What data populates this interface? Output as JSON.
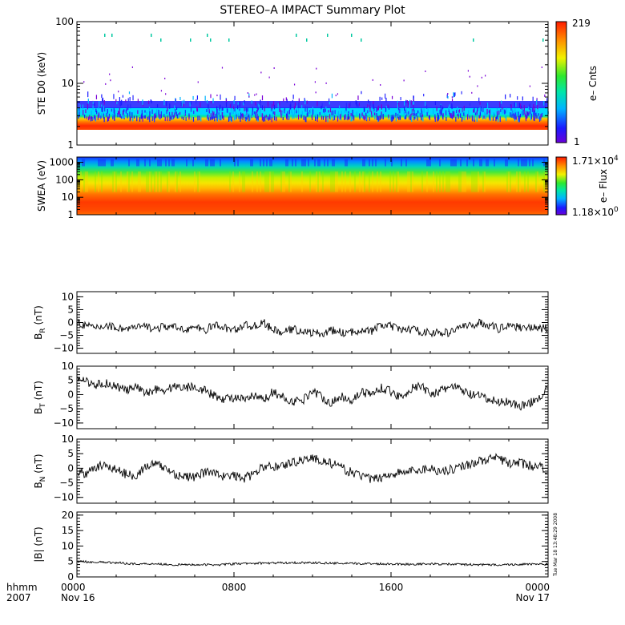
{
  "chart_data": {
    "type": "line",
    "title": "STEREO–A IMPACT Summary Plot",
    "x_axis": {
      "row_label_1": "hhmm",
      "row_label_2": "2007",
      "range_hours": [
        0,
        24
      ],
      "ticks": [
        {
          "hour": 0,
          "label": "0000",
          "date": "Nov 16"
        },
        {
          "hour": 8,
          "label": "0800",
          "date": ""
        },
        {
          "hour": 16,
          "label": "1600",
          "date": ""
        },
        {
          "hour": 24,
          "label": "0000",
          "date": "Nov 17"
        }
      ]
    },
    "timestamp": "Tue Mar 18 13:48:29 2008",
    "panels": [
      {
        "id": "ste",
        "kind": "spectrogram",
        "ylabel": "STE D0 (keV)",
        "yscale": "log",
        "ylim": [
          1,
          100
        ],
        "yticks": [
          {
            "v": 1,
            "label": "1"
          },
          {
            "v": 10,
            "label": "10"
          },
          {
            "v": 100,
            "label": "100"
          }
        ],
        "colorbar": {
          "label": "e– Cnts",
          "max": "219",
          "min": "1"
        },
        "description_bands_keV": {
          "saturated_top": 2.6,
          "cyan_edge": 3.3,
          "sparse_top": 5.5
        }
      },
      {
        "id": "swea",
        "kind": "spectrogram",
        "ylabel": "SWEA (eV)",
        "yscale": "log",
        "ylim": [
          1,
          2000
        ],
        "yticks": [
          {
            "v": 1,
            "label": "1"
          },
          {
            "v": 10,
            "label": "10"
          },
          {
            "v": 100,
            "label": "100"
          },
          {
            "v": 1000,
            "label": "1000"
          }
        ],
        "colorbar": {
          "label": "e– Flux",
          "max_mant": "1.71×10",
          "max_exp": "4",
          "min_mant": "1.18×10",
          "min_exp": "0"
        }
      },
      {
        "id": "br",
        "kind": "line",
        "ylabel_main": "B",
        "ylabel_sub": "R",
        "ylabel_unit": " (nT)",
        "ylim": [
          -12,
          12
        ],
        "yticks": [
          {
            "v": -10,
            "label": "−10"
          },
          {
            "v": -5,
            "label": "−5"
          },
          {
            "v": 0,
            "label": "0"
          },
          {
            "v": 5,
            "label": "5"
          },
          {
            "v": 10,
            "label": "10"
          }
        ],
        "series": [
          {
            "x": [
              0,
              0.5,
              1,
              1.5,
              2,
              2.5,
              3,
              3.5,
              4,
              4.5,
              5,
              5.5,
              6,
              6.5,
              7,
              7.5,
              8,
              8.5,
              9,
              9.5,
              10,
              10.5,
              11,
              11.5,
              12,
              12.5,
              13,
              13.5,
              14,
              14.5,
              15,
              15.5,
              16,
              16.5,
              17,
              17.5,
              18,
              18.5,
              19,
              19.5,
              20,
              20.5,
              21,
              21.5,
              22,
              22.5,
              23,
              23.5,
              24
            ],
            "values": [
              0.5,
              -1.5,
              -2,
              -1,
              -2,
              -2.5,
              -2,
              -1.5,
              -2.5,
              -1.5,
              -2,
              -2.5,
              -2,
              -3,
              -1,
              -2,
              -3,
              -1,
              -1.5,
              0,
              -3,
              -4,
              -2.5,
              -3.5,
              -4,
              -4.5,
              -3,
              -4,
              -4,
              -2.5,
              -3.5,
              -1,
              -1.5,
              -3,
              -2.5,
              -3.5,
              -4,
              -4,
              -4,
              -1.5,
              -1.5,
              0,
              -1,
              -2.5,
              -0.5,
              -2,
              -1.5,
              -2.5,
              -2
            ]
          }
        ]
      },
      {
        "id": "bt",
        "kind": "line",
        "ylabel_main": "B",
        "ylabel_sub": "T",
        "ylabel_unit": " (nT)",
        "ylim": [
          -12,
          10
        ],
        "yticks": [
          {
            "v": -10,
            "label": "−10"
          },
          {
            "v": -5,
            "label": "−5"
          },
          {
            "v": 0,
            "label": "0"
          },
          {
            "v": 5,
            "label": "5"
          },
          {
            "v": 10,
            "label": "10"
          }
        ],
        "series": [
          {
            "x": [
              0,
              0.5,
              1,
              1.5,
              2,
              2.5,
              3,
              3.5,
              4,
              4.5,
              5,
              5.5,
              6,
              6.5,
              7,
              7.5,
              8,
              8.5,
              9,
              9.5,
              10,
              10.5,
              11,
              11.5,
              12,
              12.5,
              13,
              13.5,
              14,
              14.5,
              15,
              15.5,
              16,
              16.5,
              17,
              17.5,
              18,
              18.5,
              19,
              19.5,
              20,
              20.5,
              21,
              21.5,
              22,
              22.5,
              23,
              23.5,
              24
            ],
            "values": [
              5,
              4.5,
              3.5,
              4,
              3,
              1.5,
              2.5,
              0.5,
              2,
              1.5,
              3,
              2.5,
              3,
              1.5,
              -0.5,
              -1.5,
              -1,
              -2,
              -0.5,
              -2,
              1,
              -1,
              -2.5,
              -2,
              1.5,
              -1,
              -3,
              -0.5,
              -2,
              1,
              0,
              2.5,
              1,
              -1,
              2,
              3,
              0.5,
              1,
              3,
              2,
              0,
              -0.5,
              -2,
              -2.5,
              -2.5,
              -4,
              -3.5,
              -1,
              2
            ]
          }
        ]
      },
      {
        "id": "bn",
        "kind": "line",
        "ylabel_main": "B",
        "ylabel_sub": "N",
        "ylabel_unit": " (nT)",
        "ylim": [
          -12,
          10
        ],
        "yticks": [
          {
            "v": -10,
            "label": "−10"
          },
          {
            "v": -5,
            "label": "−5"
          },
          {
            "v": 0,
            "label": "0"
          },
          {
            "v": 5,
            "label": "5"
          },
          {
            "v": 10,
            "label": "10"
          }
        ],
        "series": [
          {
            "x": [
              0,
              0.5,
              1,
              1.5,
              2,
              2.5,
              3,
              3.5,
              4,
              4.5,
              5,
              5.5,
              6,
              6.5,
              7,
              7.5,
              8,
              8.5,
              9,
              9.5,
              10,
              10.5,
              11,
              11.5,
              12,
              12.5,
              13,
              13.5,
              14,
              14.5,
              15,
              15.5,
              16,
              16.5,
              17,
              17.5,
              18,
              18.5,
              19,
              19.5,
              20,
              20.5,
              21,
              21.5,
              22,
              22.5,
              23,
              23.5,
              24
            ],
            "values": [
              -1,
              -2,
              0.5,
              1,
              -0.5,
              -2,
              -2.5,
              0.5,
              1.5,
              0,
              -2,
              -3,
              -3,
              -1.5,
              -1,
              -3,
              -2.5,
              -3.5,
              -2,
              0.5,
              0.5,
              1,
              2,
              3,
              3.5,
              2.5,
              1.5,
              0,
              -1.5,
              -2.5,
              -4,
              -3,
              -2,
              -1.5,
              -1,
              -0.5,
              0,
              -1,
              -0.5,
              0.5,
              1.5,
              2.5,
              3,
              3.5,
              1.5,
              2,
              1,
              0.5,
              -0.5
            ]
          }
        ]
      },
      {
        "id": "bmag",
        "kind": "line",
        "ylabel_main": "|B|",
        "ylabel_sub": "",
        "ylabel_unit": " (nT)",
        "ylim": [
          0,
          21
        ],
        "yticks": [
          {
            "v": 0,
            "label": "0"
          },
          {
            "v": 5,
            "label": "5"
          },
          {
            "v": 10,
            "label": "10"
          },
          {
            "v": 15,
            "label": "15"
          },
          {
            "v": 20,
            "label": "20"
          }
        ],
        "series": [
          {
            "x": [
              0,
              1,
              2,
              3,
              4,
              5,
              6,
              7,
              8,
              9,
              10,
              11,
              12,
              13,
              14,
              15,
              16,
              17,
              18,
              19,
              20,
              21,
              22,
              23,
              24
            ],
            "values": [
              5,
              4.8,
              4.6,
              4.2,
              4.3,
              3.9,
              4,
              3.9,
              4.2,
              4.4,
              4.5,
              4.6,
              4.6,
              4.4,
              4.3,
              4.3,
              4.2,
              4.1,
              4.2,
              4.1,
              4,
              3.9,
              4,
              4.1,
              4.1
            ]
          }
        ]
      }
    ]
  }
}
